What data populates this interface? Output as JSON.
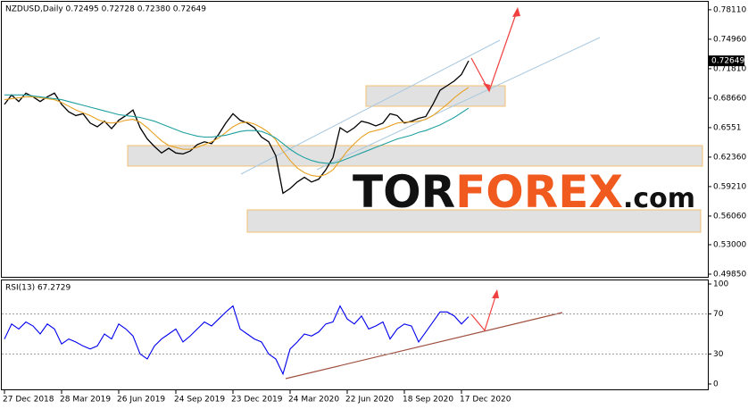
{
  "chart_data": [
    {
      "type": "line",
      "title": "NZDUSD,Daily  0.72495 0.72728 0.72380 0.72649",
      "categories": [
        "27 Dec 2018",
        null,
        null,
        null,
        null,
        null,
        null,
        null,
        "28 Mar 2019",
        null,
        null,
        null,
        null,
        null,
        null,
        null,
        "26 Jun 2019",
        null,
        null,
        null,
        null,
        null,
        null,
        null,
        "24 Sep 2019",
        null,
        null,
        null,
        null,
        null,
        null,
        null,
        "23 Dec 2019",
        null,
        null,
        null,
        null,
        null,
        null,
        null,
        "24 Mar 2020",
        null,
        null,
        null,
        null,
        null,
        null,
        null,
        "22 Jun 2020",
        null,
        null,
        null,
        null,
        null,
        null,
        null,
        "18 Sep 2020",
        null,
        null,
        null,
        null,
        null,
        null,
        null,
        "17 Dec 2020",
        null
      ],
      "series": [
        {
          "color": "#000000",
          "values": [
            0.68,
            0.69,
            0.683,
            0.692,
            0.688,
            0.683,
            0.688,
            0.692,
            0.68,
            0.672,
            0.668,
            0.67,
            0.66,
            0.656,
            0.662,
            0.654,
            0.663,
            0.668,
            0.674,
            0.655,
            0.643,
            0.635,
            0.628,
            0.633,
            0.628,
            0.627,
            0.63,
            0.637,
            0.64,
            0.638,
            0.648,
            0.66,
            0.67,
            0.663,
            0.66,
            0.655,
            0.645,
            0.64,
            0.625,
            0.585,
            0.59,
            0.597,
            0.602,
            0.597,
            0.6,
            0.61,
            0.623,
            0.655,
            0.65,
            0.655,
            0.662,
            0.66,
            0.657,
            0.66,
            0.67,
            0.668,
            0.66,
            0.662,
            0.665,
            0.667,
            0.68,
            0.695,
            0.7,
            0.705,
            0.712,
            0.72649
          ]
        },
        {
          "color": "#e8a020",
          "values": [
            0.685,
            0.686,
            0.687,
            0.688,
            0.688,
            0.687,
            0.686,
            0.685,
            0.682,
            0.678,
            0.674,
            0.671,
            0.668,
            0.664,
            0.661,
            0.66,
            0.661,
            0.663,
            0.664,
            0.661,
            0.655,
            0.648,
            0.641,
            0.636,
            0.634,
            0.632,
            0.632,
            0.634,
            0.637,
            0.64,
            0.644,
            0.65,
            0.656,
            0.66,
            0.661,
            0.659,
            0.655,
            0.65,
            0.642,
            0.63,
            0.62,
            0.612,
            0.607,
            0.604,
            0.603,
            0.605,
            0.61,
            0.62,
            0.63,
            0.638,
            0.645,
            0.65,
            0.652,
            0.654,
            0.657,
            0.66,
            0.661,
            0.661,
            0.662,
            0.664,
            0.668,
            0.674,
            0.68,
            0.687,
            0.693,
            0.698
          ]
        },
        {
          "color": "#20a0a0",
          "values": [
            0.69,
            0.69,
            0.69,
            0.69,
            0.689,
            0.688,
            0.687,
            0.686,
            0.685,
            0.683,
            0.681,
            0.679,
            0.677,
            0.675,
            0.673,
            0.671,
            0.669,
            0.668,
            0.667,
            0.666,
            0.664,
            0.662,
            0.659,
            0.656,
            0.653,
            0.65,
            0.648,
            0.646,
            0.645,
            0.645,
            0.646,
            0.647,
            0.649,
            0.651,
            0.652,
            0.652,
            0.651,
            0.648,
            0.644,
            0.638,
            0.632,
            0.627,
            0.623,
            0.62,
            0.618,
            0.617,
            0.617,
            0.619,
            0.622,
            0.625,
            0.628,
            0.631,
            0.634,
            0.637,
            0.64,
            0.643,
            0.645,
            0.647,
            0.65,
            0.652,
            0.655,
            0.658,
            0.662,
            0.666,
            0.671,
            0.676
          ]
        }
      ],
      "ylim": [
        0.4966,
        0.7896
      ],
      "yticks": [
        {
          "value": 0.7811,
          "label": "0.78110"
        },
        {
          "value": 0.7496,
          "label": "0.74960"
        },
        {
          "value": 0.7181,
          "label": "0.71810"
        },
        {
          "value": 0.6866,
          "label": "0.68660"
        },
        0.6551,
        {
          "value": 0.6236,
          "label": "0.62360"
        },
        {
          "value": 0.5921,
          "label": "0.59210"
        },
        {
          "value": 0.5606,
          "label": "0.56060"
        },
        {
          "value": 0.53,
          "label": "0.53000"
        },
        {
          "value": 0.4985,
          "label": "0.49850"
        }
      ],
      "grid": false,
      "watermark": [
        "TOR",
        "FOREX",
        ".com"
      ]
    },
    {
      "type": "line",
      "title": "RSI(13) 67.2729",
      "series": [
        {
          "color": "#0000ee",
          "values": [
            45,
            60,
            55,
            62,
            58,
            50,
            60,
            55,
            40,
            45,
            42,
            38,
            35,
            38,
            50,
            45,
            60,
            55,
            48,
            30,
            25,
            38,
            45,
            50,
            55,
            42,
            48,
            55,
            62,
            58,
            65,
            72,
            78,
            55,
            50,
            45,
            42,
            30,
            25,
            10,
            35,
            42,
            50,
            48,
            52,
            60,
            62,
            78,
            65,
            60,
            68,
            55,
            58,
            62,
            45,
            55,
            60,
            58,
            42,
            52,
            62,
            72,
            72,
            68,
            60,
            67.2729
          ]
        }
      ],
      "ylim": [
        0,
        100
      ],
      "yticks": [
        100,
        70,
        30,
        0
      ],
      "grid": true
    }
  ]
}
